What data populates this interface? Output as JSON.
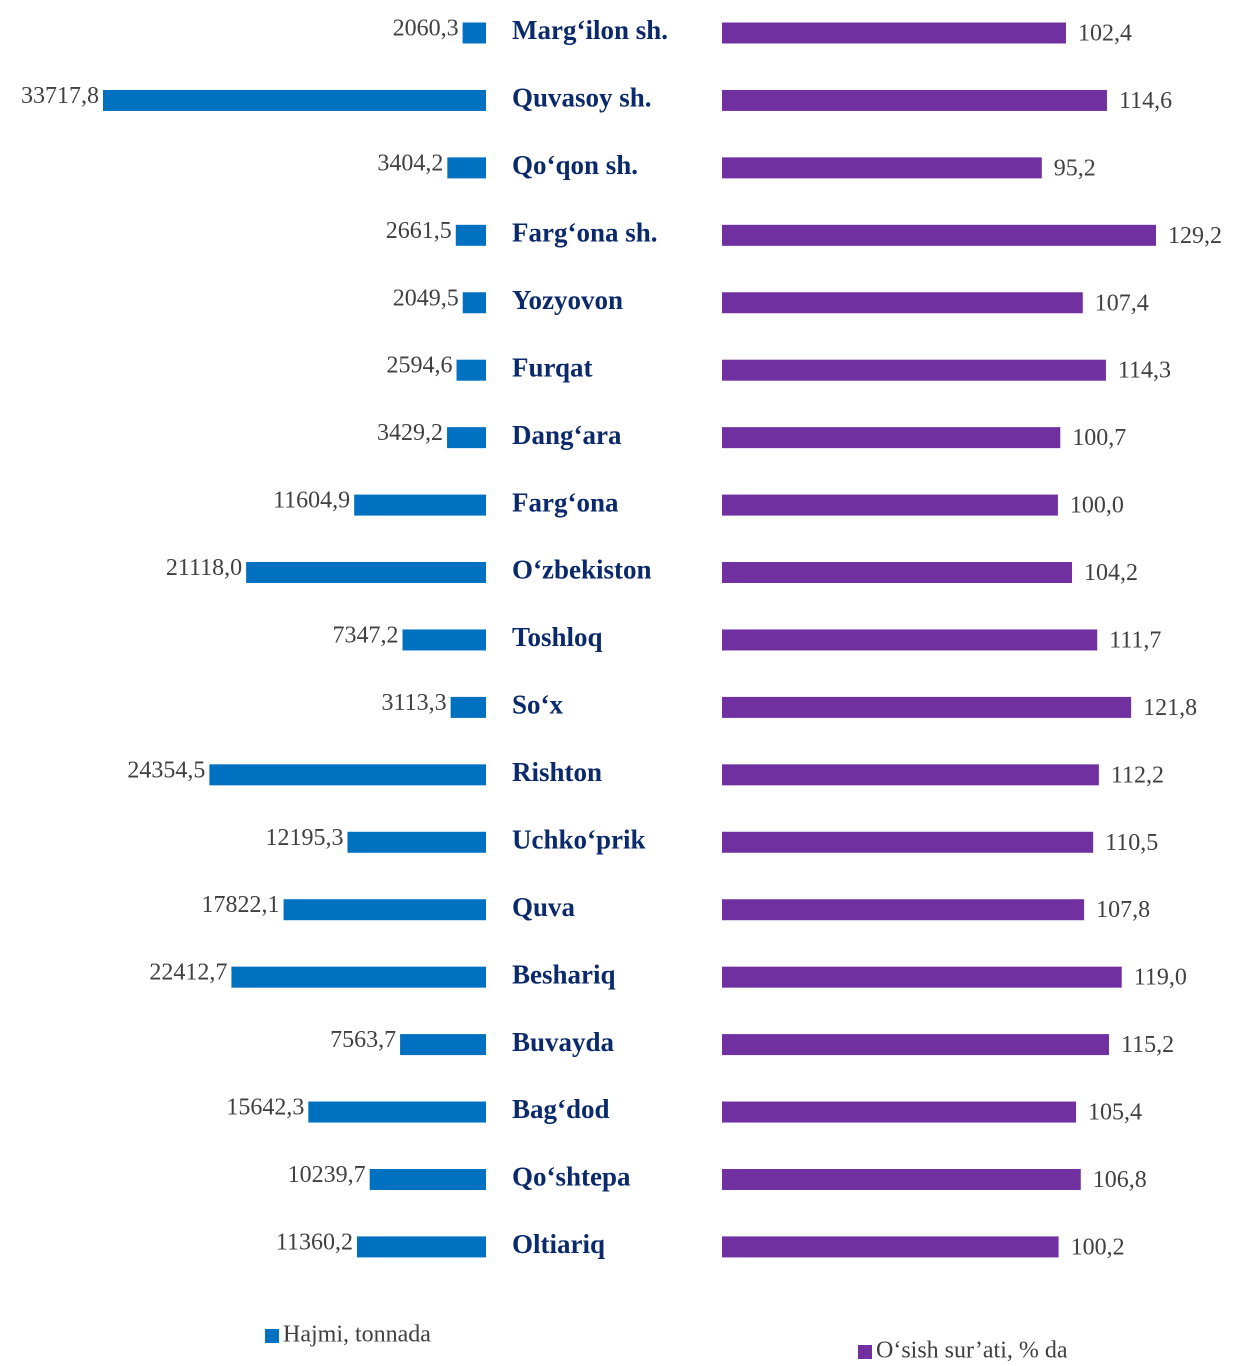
{
  "chart_data": {
    "type": "butterfly-bar",
    "categories": [
      "Marg‘ilon sh.",
      "Quvasoy sh.",
      "Qo‘qon sh.",
      "Farg‘ona sh.",
      "Yozyovon",
      "Furqat",
      "Dang‘ara",
      "Farg‘ona",
      "O‘zbekiston",
      "Toshloq",
      "So‘x",
      "Rishton",
      "Uchko‘prik",
      "Quva",
      "Beshariq",
      "Buvayda",
      "Bag‘dod",
      "Qo‘shtepa",
      "Oltiariq"
    ],
    "series": [
      {
        "name": "Hajmi, tonnada",
        "color": "#0070c0",
        "values": [
          2060.3,
          33717.8,
          3404.2,
          2661.5,
          2049.5,
          2594.6,
          3429.2,
          11604.9,
          21118.0,
          7347.2,
          3113.3,
          24354.5,
          12195.3,
          17822.1,
          22412.7,
          7563.7,
          15642.3,
          10239.7,
          11360.2
        ],
        "value_labels": [
          "2060,3",
          "33717,8",
          "3404,2",
          "2661,5",
          "2049,5",
          "2594,6",
          "3429,2",
          "11604,9",
          "21118,0",
          "7347,2",
          "3113,3",
          "24354,5",
          "12195,3",
          "17822,1",
          "22412,7",
          "7563,7",
          "15642,3",
          "10239,7",
          "11360,2"
        ]
      },
      {
        "name": "O‘sish sur’ati, % da",
        "color": "#7030a0",
        "values": [
          102.4,
          114.6,
          95.2,
          129.2,
          107.4,
          114.3,
          100.7,
          100.0,
          104.2,
          111.7,
          121.8,
          112.2,
          110.5,
          107.8,
          119.0,
          115.2,
          105.4,
          106.8,
          100.2
        ],
        "value_labels": [
          "102,4",
          "114,6",
          "95,2",
          "129,2",
          "107,4",
          "114,3",
          "100,7",
          "100,0",
          "104,2",
          "111,7",
          "121,8",
          "112,2",
          "110,5",
          "107,8",
          "119,0",
          "115,2",
          "105,4",
          "106,8",
          "100,2"
        ]
      }
    ]
  }
}
